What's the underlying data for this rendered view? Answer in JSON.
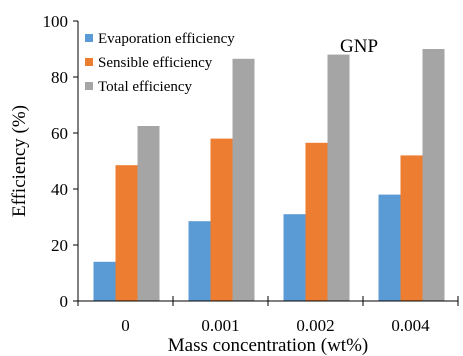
{
  "chart_data": {
    "type": "bar",
    "title": "",
    "annotation": "GNP",
    "xlabel": "Mass concentration (wt%)",
    "ylabel": "Efficiency (%)",
    "ylim": [
      0,
      100
    ],
    "yticks": [
      0,
      20,
      40,
      60,
      80,
      100
    ],
    "grid": false,
    "legend_position": "top-left",
    "categories": [
      "0",
      "0.001",
      "0.002",
      "0.004"
    ],
    "series": [
      {
        "name": "Evaporation efficiency",
        "color": "#5B9BD5",
        "values": [
          14,
          28.5,
          31,
          38
        ]
      },
      {
        "name": "Sensible efficiency",
        "color": "#ED7D31",
        "values": [
          48.5,
          58,
          56.5,
          52
        ]
      },
      {
        "name": "Total efficiency",
        "color": "#A5A5A5",
        "values": [
          62.5,
          86.5,
          88,
          90
        ]
      }
    ]
  }
}
